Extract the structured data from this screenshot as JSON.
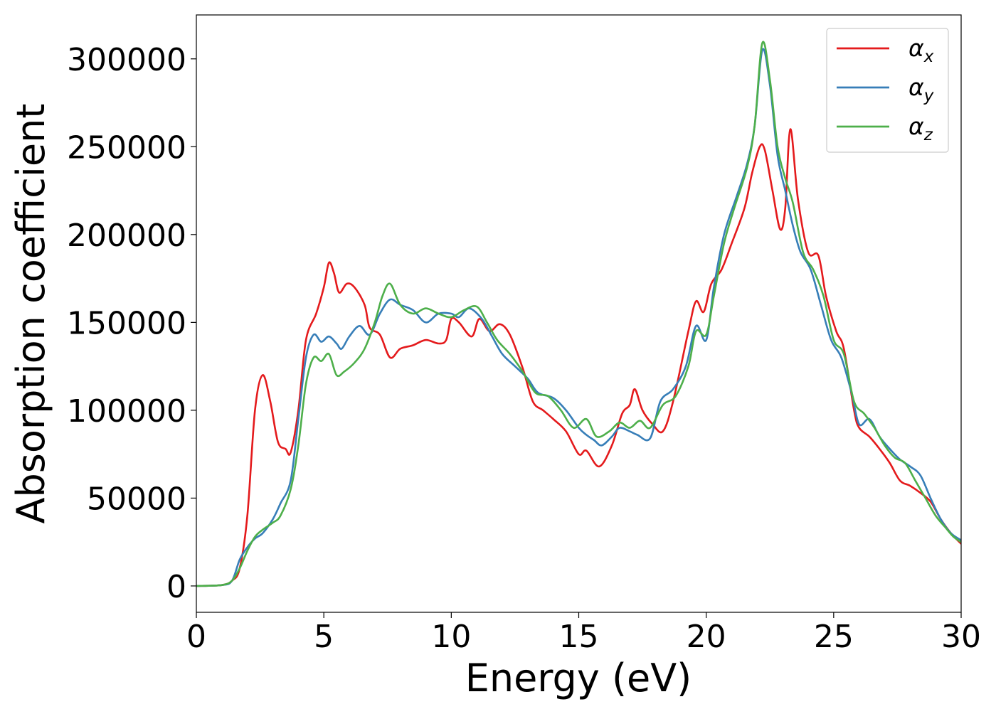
{
  "chart_data": {
    "type": "line",
    "title": "",
    "xlabel": "Energy (eV)",
    "ylabel": "Absorption coefficient",
    "xlim": [
      0,
      30
    ],
    "ylim": [
      -15000,
      325000
    ],
    "xticks": [
      0,
      5,
      10,
      15,
      20,
      25,
      30
    ],
    "xtick_labels": [
      "0",
      "5",
      "10",
      "15",
      "20",
      "25",
      "30"
    ],
    "yticks": [
      0,
      50000,
      100000,
      150000,
      200000,
      250000,
      300000
    ],
    "ytick_labels": [
      "0",
      "50000",
      "100000",
      "150000",
      "200000",
      "250000",
      "300000"
    ],
    "grid": false,
    "legend_position": "top-right",
    "series": [
      {
        "name": "αx",
        "label_base": "α",
        "label_sub": "x",
        "color": "#e41a1c",
        "points": [
          [
            0,
            0
          ],
          [
            1,
            500
          ],
          [
            1.4,
            3000
          ],
          [
            1.7,
            10000
          ],
          [
            2,
            40000
          ],
          [
            2.3,
            100000
          ],
          [
            2.6,
            120000
          ],
          [
            2.9,
            105000
          ],
          [
            3.2,
            82000
          ],
          [
            3.5,
            78000
          ],
          [
            3.7,
            76000
          ],
          [
            4,
            100000
          ],
          [
            4.3,
            140000
          ],
          [
            4.7,
            155000
          ],
          [
            5,
            170000
          ],
          [
            5.2,
            184000
          ],
          [
            5.4,
            178000
          ],
          [
            5.6,
            167000
          ],
          [
            5.9,
            172000
          ],
          [
            6.2,
            170000
          ],
          [
            6.6,
            160000
          ],
          [
            6.8,
            147000
          ],
          [
            7.2,
            143000
          ],
          [
            7.6,
            130000
          ],
          [
            8,
            135000
          ],
          [
            8.5,
            137000
          ],
          [
            9,
            140000
          ],
          [
            9.5,
            138000
          ],
          [
            9.8,
            140000
          ],
          [
            10,
            152000
          ],
          [
            10.3,
            150000
          ],
          [
            10.8,
            142000
          ],
          [
            11.1,
            152000
          ],
          [
            11.5,
            145000
          ],
          [
            11.9,
            149000
          ],
          [
            12.3,
            143000
          ],
          [
            12.8,
            124000
          ],
          [
            13.2,
            105000
          ],
          [
            13.6,
            100000
          ],
          [
            14,
            95000
          ],
          [
            14.5,
            88000
          ],
          [
            15,
            75000
          ],
          [
            15.3,
            77000
          ],
          [
            15.8,
            68000
          ],
          [
            16.3,
            80000
          ],
          [
            16.7,
            98000
          ],
          [
            17,
            103000
          ],
          [
            17.2,
            112000
          ],
          [
            17.5,
            100000
          ],
          [
            17.9,
            92000
          ],
          [
            18.3,
            88000
          ],
          [
            18.7,
            105000
          ],
          [
            19.3,
            145000
          ],
          [
            19.6,
            162000
          ],
          [
            19.9,
            156000
          ],
          [
            20.2,
            172000
          ],
          [
            20.6,
            180000
          ],
          [
            21,
            195000
          ],
          [
            21.5,
            215000
          ],
          [
            21.8,
            235000
          ],
          [
            22.1,
            250000
          ],
          [
            22.3,
            248000
          ],
          [
            22.6,
            225000
          ],
          [
            22.9,
            203000
          ],
          [
            23.1,
            215000
          ],
          [
            23.3,
            260000
          ],
          [
            23.6,
            220000
          ],
          [
            24,
            190000
          ],
          [
            24.4,
            188000
          ],
          [
            24.7,
            165000
          ],
          [
            25.1,
            145000
          ],
          [
            25.4,
            135000
          ],
          [
            25.8,
            100000
          ],
          [
            26,
            90000
          ],
          [
            26.4,
            85000
          ],
          [
            26.8,
            78000
          ],
          [
            27.2,
            70000
          ],
          [
            27.6,
            60000
          ],
          [
            28,
            57000
          ],
          [
            28.4,
            53000
          ],
          [
            28.8,
            48000
          ],
          [
            29.2,
            38000
          ],
          [
            29.6,
            30000
          ],
          [
            30,
            24000
          ]
        ]
      },
      {
        "name": "αy",
        "label_base": "α",
        "label_sub": "y",
        "color": "#377eb8",
        "points": [
          [
            0,
            0
          ],
          [
            1,
            500
          ],
          [
            1.4,
            3000
          ],
          [
            1.7,
            15000
          ],
          [
            2,
            22000
          ],
          [
            2.3,
            27000
          ],
          [
            2.6,
            30000
          ],
          [
            3,
            38000
          ],
          [
            3.3,
            47000
          ],
          [
            3.7,
            60000
          ],
          [
            4,
            95000
          ],
          [
            4.3,
            130000
          ],
          [
            4.6,
            143000
          ],
          [
            4.9,
            139000
          ],
          [
            5.2,
            142000
          ],
          [
            5.5,
            138000
          ],
          [
            5.7,
            135000
          ],
          [
            6,
            142000
          ],
          [
            6.4,
            148000
          ],
          [
            6.8,
            143000
          ],
          [
            7.2,
            155000
          ],
          [
            7.6,
            163000
          ],
          [
            8,
            160000
          ],
          [
            8.5,
            157000
          ],
          [
            9,
            150000
          ],
          [
            9.5,
            155000
          ],
          [
            10,
            155000
          ],
          [
            10.3,
            153000
          ],
          [
            10.7,
            158000
          ],
          [
            11.2,
            152000
          ],
          [
            11.6,
            142000
          ],
          [
            12,
            132000
          ],
          [
            12.5,
            125000
          ],
          [
            13,
            118000
          ],
          [
            13.4,
            110000
          ],
          [
            14,
            107000
          ],
          [
            14.5,
            100000
          ],
          [
            15,
            90000
          ],
          [
            15.3,
            86000
          ],
          [
            15.6,
            83000
          ],
          [
            15.9,
            80000
          ],
          [
            16.3,
            85000
          ],
          [
            16.6,
            90000
          ],
          [
            17,
            88000
          ],
          [
            17.3,
            86000
          ],
          [
            17.8,
            84000
          ],
          [
            18.2,
            105000
          ],
          [
            18.7,
            112000
          ],
          [
            19.2,
            125000
          ],
          [
            19.6,
            148000
          ],
          [
            20,
            140000
          ],
          [
            20.3,
            170000
          ],
          [
            20.7,
            200000
          ],
          [
            21.2,
            222000
          ],
          [
            21.6,
            240000
          ],
          [
            21.9,
            262000
          ],
          [
            22.2,
            305000
          ],
          [
            22.5,
            285000
          ],
          [
            22.8,
            245000
          ],
          [
            23.1,
            225000
          ],
          [
            23.4,
            205000
          ],
          [
            23.7,
            190000
          ],
          [
            24.1,
            180000
          ],
          [
            24.5,
            160000
          ],
          [
            24.9,
            140000
          ],
          [
            25.3,
            130000
          ],
          [
            25.7,
            110000
          ],
          [
            26,
            92000
          ],
          [
            26.4,
            95000
          ],
          [
            26.8,
            85000
          ],
          [
            27.2,
            78000
          ],
          [
            27.6,
            72000
          ],
          [
            28,
            68000
          ],
          [
            28.4,
            63000
          ],
          [
            28.8,
            50000
          ],
          [
            29.2,
            38000
          ],
          [
            29.6,
            30000
          ],
          [
            30,
            26000
          ]
        ]
      },
      {
        "name": "αz",
        "label_base": "α",
        "label_sub": "z",
        "color": "#4daf4a",
        "points": [
          [
            0,
            0
          ],
          [
            1,
            500
          ],
          [
            1.4,
            3000
          ],
          [
            1.7,
            10000
          ],
          [
            2,
            20000
          ],
          [
            2.3,
            28000
          ],
          [
            2.6,
            32000
          ],
          [
            3,
            36000
          ],
          [
            3.3,
            40000
          ],
          [
            3.7,
            55000
          ],
          [
            4,
            80000
          ],
          [
            4.3,
            115000
          ],
          [
            4.6,
            130000
          ],
          [
            4.9,
            128000
          ],
          [
            5.2,
            132000
          ],
          [
            5.5,
            120000
          ],
          [
            5.8,
            122000
          ],
          [
            6.2,
            127000
          ],
          [
            6.6,
            135000
          ],
          [
            7,
            150000
          ],
          [
            7.3,
            165000
          ],
          [
            7.6,
            172000
          ],
          [
            8,
            160000
          ],
          [
            8.5,
            155000
          ],
          [
            9,
            158000
          ],
          [
            9.5,
            155000
          ],
          [
            10,
            153000
          ],
          [
            10.5,
            157000
          ],
          [
            11,
            159000
          ],
          [
            11.4,
            150000
          ],
          [
            11.8,
            140000
          ],
          [
            12.3,
            132000
          ],
          [
            12.8,
            122000
          ],
          [
            13.3,
            110000
          ],
          [
            13.8,
            108000
          ],
          [
            14.3,
            100000
          ],
          [
            14.8,
            90000
          ],
          [
            15.3,
            95000
          ],
          [
            15.7,
            85000
          ],
          [
            16.2,
            88000
          ],
          [
            16.6,
            93000
          ],
          [
            17,
            90000
          ],
          [
            17.4,
            94000
          ],
          [
            17.8,
            90000
          ],
          [
            18.3,
            103000
          ],
          [
            18.8,
            108000
          ],
          [
            19.3,
            125000
          ],
          [
            19.6,
            145000
          ],
          [
            20,
            143000
          ],
          [
            20.3,
            165000
          ],
          [
            20.7,
            195000
          ],
          [
            21.1,
            215000
          ],
          [
            21.6,
            238000
          ],
          [
            21.9,
            262000
          ],
          [
            22.2,
            309000
          ],
          [
            22.5,
            288000
          ],
          [
            22.8,
            250000
          ],
          [
            23.1,
            232000
          ],
          [
            23.4,
            218000
          ],
          [
            23.8,
            190000
          ],
          [
            24.2,
            180000
          ],
          [
            24.6,
            165000
          ],
          [
            25,
            140000
          ],
          [
            25.4,
            132000
          ],
          [
            25.8,
            105000
          ],
          [
            26.2,
            98000
          ],
          [
            26.6,
            90000
          ],
          [
            27,
            80000
          ],
          [
            27.4,
            73000
          ],
          [
            27.8,
            70000
          ],
          [
            28.2,
            60000
          ],
          [
            28.6,
            50000
          ],
          [
            29,
            40000
          ],
          [
            29.4,
            33000
          ],
          [
            29.7,
            28000
          ],
          [
            30,
            25000
          ]
        ]
      }
    ]
  }
}
